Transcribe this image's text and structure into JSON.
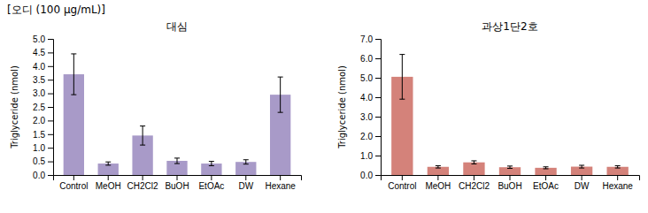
{
  "title": "[오디 (100 μg/mL)]",
  "chart_data": [
    {
      "type": "bar",
      "subtitle": "대심",
      "categories": [
        "Control",
        "MeOH",
        "CH2Cl2",
        "BuOH",
        "EtOAc",
        "DW",
        "Hexane"
      ],
      "values": [
        3.7,
        0.42,
        1.45,
        0.52,
        0.42,
        0.48,
        2.95
      ],
      "errors": [
        0.75,
        0.06,
        0.35,
        0.1,
        0.08,
        0.08,
        0.65
      ],
      "color": "#a89ac8",
      "ylabel": "Triglyceride (nmol)",
      "ylim": [
        0,
        5.0
      ],
      "yticks": [
        {
          "value": 0.0,
          "label": "0.0"
        },
        0.5,
        {
          "value": 1.0,
          "label": "1.0"
        },
        1.5,
        {
          "value": 2.0,
          "label": "2.0"
        },
        2.5,
        {
          "value": 3.0,
          "label": "3.0"
        },
        3.5,
        {
          "value": 4.0,
          "label": "4.0"
        },
        4.5,
        {
          "value": 5.0,
          "label": "5.0"
        }
      ]
    },
    {
      "type": "bar",
      "subtitle": "과상1단2호",
      "categories": [
        "Control",
        "MeOH",
        "CH2Cl2",
        "BuOH",
        "EtOAc",
        "DW",
        "Hexane"
      ],
      "values": [
        5.05,
        0.42,
        0.65,
        0.4,
        0.37,
        0.43,
        0.42
      ],
      "errors": [
        1.15,
        0.06,
        0.08,
        0.06,
        0.05,
        0.07,
        0.06
      ],
      "color": "#d4827a",
      "ylabel": "Triglyceride (nmol)",
      "ylim": [
        0,
        7.0
      ],
      "yticks": [
        {
          "value": 0.0,
          "label": "0.0"
        },
        {
          "value": 1.0,
          "label": "1.0"
        },
        {
          "value": 2.0,
          "label": "2.0"
        },
        {
          "value": 3.0,
          "label": "3.0"
        },
        {
          "value": 4.0,
          "label": "4.0"
        },
        {
          "value": 5.0,
          "label": "5.0"
        },
        {
          "value": 6.0,
          "label": "6.0"
        },
        {
          "value": 7.0,
          "label": "7.0"
        }
      ]
    }
  ]
}
